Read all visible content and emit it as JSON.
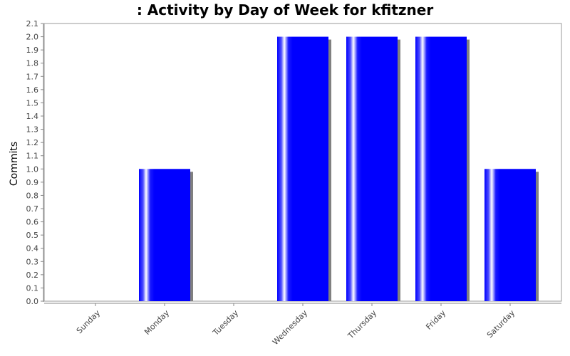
{
  "chart_data": {
    "type": "bar",
    "title": ": Activity by Day of Week for kfitzner",
    "ylabel": "Commits",
    "xlabel": "",
    "categories": [
      "Sunday",
      "Monday",
      "Tuesday",
      "Wednesday",
      "Thursday",
      "Friday",
      "Saturday"
    ],
    "values": [
      0,
      1,
      0,
      2,
      2,
      2,
      1
    ],
    "ylim": [
      0,
      2.1
    ],
    "y_ticks": [
      "0.0",
      "0.1",
      "0.2",
      "0.3",
      "0.4",
      "0.5",
      "0.6",
      "0.7",
      "0.8",
      "0.9",
      "1.0",
      "1.1",
      "1.2",
      "1.3",
      "1.4",
      "1.5",
      "1.6",
      "1.7",
      "1.8",
      "1.9",
      "2.0",
      "2.1"
    ],
    "grid": false,
    "legend": "none",
    "colors": {
      "bar": "#0000ff",
      "bar_highlight": "#ffffff",
      "shadow": "#808080",
      "axis": "#888888",
      "plot_border": "#999999"
    }
  }
}
